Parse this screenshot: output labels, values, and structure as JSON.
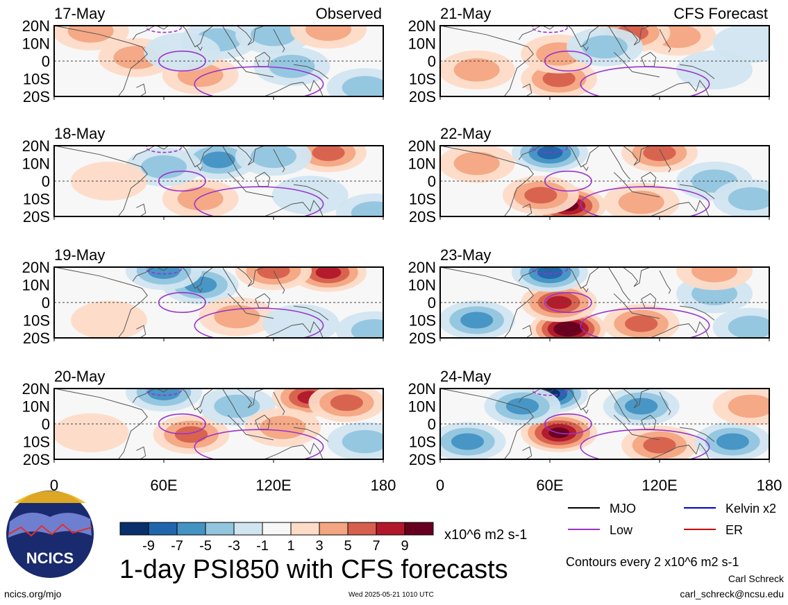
{
  "figure": {
    "title": "1-day PSI850 with CFS forecasts",
    "units": "x10^6 m2 s-1",
    "contour_note": "Contours every 2 x10^6 m2 s-1",
    "author": "Carl Schreck",
    "email": "carl_schreck@ncsu.edu",
    "site": "ncics.org/mjo",
    "timestamp": "Wed 2025-05-21 1010 UTC",
    "logo_text": "NCICS",
    "left_column_label": "Observed",
    "right_column_label": "CFS Forecast"
  },
  "colors": {
    "scale": [
      "#08306b",
      "#2166ac",
      "#4393c3",
      "#92c5de",
      "#d1e5f0",
      "#f7f7f7",
      "#fddbc7",
      "#f4a582",
      "#d6604d",
      "#b2182b",
      "#67001f"
    ],
    "mjo": "#000000",
    "low": "#9933cc",
    "kelvin": "#0000cc",
    "er": "#cc0000"
  },
  "legend": {
    "colorbar_ticks": [
      "-9",
      "-7",
      "-5",
      "-3",
      "-1",
      "1",
      "3",
      "5",
      "7",
      "9"
    ],
    "lines": [
      {
        "label": "MJO",
        "color": "#000000"
      },
      {
        "label": "Kelvin x2",
        "color": "#0000cc"
      },
      {
        "label": "Low",
        "color": "#9933cc"
      },
      {
        "label": "ER",
        "color": "#cc0000"
      }
    ]
  },
  "chart_data": {
    "type": "heatmap",
    "xlim": [
      0,
      180
    ],
    "ylim": [
      -20,
      20
    ],
    "xticks": [
      "0",
      "60E",
      "120E",
      "180"
    ],
    "yticks": [
      "20N",
      "10N",
      "0",
      "10S",
      "20S"
    ],
    "panels": [
      {
        "date": "17-May",
        "column": "Observed",
        "anomalies": [
          {
            "lon": 20,
            "lat": 17,
            "value": 3
          },
          {
            "lon": 90,
            "lat": 12,
            "value": -3
          },
          {
            "lon": 120,
            "lat": 15,
            "value": -3
          },
          {
            "lon": 150,
            "lat": 18,
            "value": 3
          },
          {
            "lon": 80,
            "lat": -8,
            "value": 3
          },
          {
            "lon": 130,
            "lat": -3,
            "value": -3
          },
          {
            "lon": 45,
            "lat": 2,
            "value": 3
          },
          {
            "lon": 70,
            "lat": 5,
            "value": -1
          },
          {
            "lon": 170,
            "lat": -15,
            "value": -3
          }
        ]
      },
      {
        "date": "18-May",
        "column": "Observed",
        "anomalies": [
          {
            "lon": 150,
            "lat": 16,
            "value": 5
          },
          {
            "lon": 90,
            "lat": 12,
            "value": -5
          },
          {
            "lon": 120,
            "lat": 14,
            "value": -3
          },
          {
            "lon": 80,
            "lat": -10,
            "value": 3
          },
          {
            "lon": 60,
            "lat": 8,
            "value": -3
          },
          {
            "lon": 30,
            "lat": 0,
            "value": 1
          },
          {
            "lon": 140,
            "lat": -8,
            "value": -1
          },
          {
            "lon": 175,
            "lat": -18,
            "value": -3
          }
        ]
      },
      {
        "date": "19-May",
        "column": "Observed",
        "anomalies": [
          {
            "lon": 150,
            "lat": 17,
            "value": 7
          },
          {
            "lon": 120,
            "lat": 18,
            "value": 5
          },
          {
            "lon": 80,
            "lat": 10,
            "value": -5
          },
          {
            "lon": 60,
            "lat": 18,
            "value": -5
          },
          {
            "lon": 100,
            "lat": -8,
            "value": 3
          },
          {
            "lon": 135,
            "lat": -12,
            "value": -1
          },
          {
            "lon": 175,
            "lat": -16,
            "value": -3
          },
          {
            "lon": 30,
            "lat": -10,
            "value": 1
          }
        ]
      },
      {
        "date": "20-May",
        "column": "Observed",
        "anomalies": [
          {
            "lon": 140,
            "lat": 15,
            "value": 7
          },
          {
            "lon": 160,
            "lat": 12,
            "value": 5
          },
          {
            "lon": 75,
            "lat": -6,
            "value": 5
          },
          {
            "lon": 100,
            "lat": 10,
            "value": -3
          },
          {
            "lon": 60,
            "lat": 18,
            "value": -5
          },
          {
            "lon": 125,
            "lat": -2,
            "value": 3
          },
          {
            "lon": 170,
            "lat": -10,
            "value": -3
          },
          {
            "lon": 20,
            "lat": -5,
            "value": 1
          }
        ]
      },
      {
        "date": "21-May",
        "column": "CFS Forecast",
        "anomalies": [
          {
            "lon": 130,
            "lat": 14,
            "value": 3
          },
          {
            "lon": 105,
            "lat": 16,
            "value": 5
          },
          {
            "lon": 65,
            "lat": -10,
            "value": 5
          },
          {
            "lon": 65,
            "lat": 4,
            "value": 3
          },
          {
            "lon": 90,
            "lat": 8,
            "value": -3
          },
          {
            "lon": 150,
            "lat": -5,
            "value": -1
          },
          {
            "lon": 20,
            "lat": -5,
            "value": 3
          },
          {
            "lon": 170,
            "lat": 10,
            "value": -1
          }
        ]
      },
      {
        "date": "22-May",
        "column": "CFS Forecast",
        "anomalies": [
          {
            "lon": 70,
            "lat": -14,
            "value": 9
          },
          {
            "lon": 55,
            "lat": -8,
            "value": 5
          },
          {
            "lon": 60,
            "lat": 16,
            "value": -7
          },
          {
            "lon": 120,
            "lat": 16,
            "value": 5
          },
          {
            "lon": 110,
            "lat": -12,
            "value": 3
          },
          {
            "lon": 150,
            "lat": 0,
            "value": -3
          },
          {
            "lon": 20,
            "lat": 10,
            "value": 3
          },
          {
            "lon": 170,
            "lat": -10,
            "value": -3
          }
        ]
      },
      {
        "date": "23-May",
        "column": "CFS Forecast",
        "anomalies": [
          {
            "lon": 70,
            "lat": -15,
            "value": 11
          },
          {
            "lon": 65,
            "lat": 0,
            "value": 7
          },
          {
            "lon": 60,
            "lat": 17,
            "value": -7
          },
          {
            "lon": 20,
            "lat": -10,
            "value": -5
          },
          {
            "lon": 110,
            "lat": -12,
            "value": 5
          },
          {
            "lon": 150,
            "lat": 5,
            "value": -3
          },
          {
            "lon": 150,
            "lat": 18,
            "value": 3
          },
          {
            "lon": 170,
            "lat": -14,
            "value": -3
          }
        ]
      },
      {
        "date": "24-May",
        "column": "CFS Forecast",
        "anomalies": [
          {
            "lon": 65,
            "lat": -5,
            "value": 9
          },
          {
            "lon": 60,
            "lat": 17,
            "value": -9
          },
          {
            "lon": 45,
            "lat": 10,
            "value": -5
          },
          {
            "lon": 15,
            "lat": -10,
            "value": -5
          },
          {
            "lon": 110,
            "lat": 10,
            "value": -5
          },
          {
            "lon": 120,
            "lat": -12,
            "value": 5
          },
          {
            "lon": 160,
            "lat": -10,
            "value": -5
          },
          {
            "lon": 170,
            "lat": 10,
            "value": 3
          }
        ]
      }
    ],
    "contours": [
      {
        "kind": "Low",
        "lon": 70,
        "lat": 0,
        "rlon": 8,
        "rlat": 4
      },
      {
        "kind": "Low",
        "lon": 112,
        "lat": -13,
        "rlon": 22,
        "rlat": 7
      },
      {
        "kind": "Low",
        "lon": 60,
        "lat": 19,
        "rlon": 6,
        "rlat": 2
      }
    ]
  }
}
